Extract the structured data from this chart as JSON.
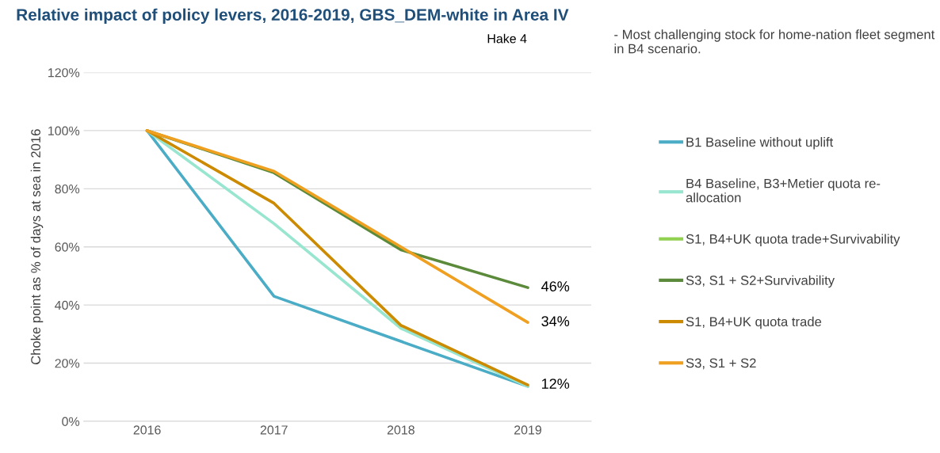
{
  "chart_data": {
    "type": "line",
    "title": "Relative impact of policy levers, 2016-2019, GBS_DEM-white in Area IV",
    "ylabel": "Choke point as % of days at sea in 2016",
    "annotations": [
      "Hake 4",
      "- Most challenging stock for home-nation fleet segment in B4 scenario."
    ],
    "categories": [
      "2016",
      "2017",
      "2018",
      "2019"
    ],
    "ylim": [
      0,
      120
    ],
    "yticks": [
      {
        "value": 0,
        "label": "0%"
      },
      {
        "value": 20,
        "label": "20%"
      },
      {
        "value": 40,
        "label": "40%"
      },
      {
        "value": 60,
        "label": "60%"
      },
      {
        "value": 80,
        "label": "80%"
      },
      {
        "value": 100,
        "label": "100%"
      },
      {
        "value": 120,
        "label": "120%"
      }
    ],
    "grid": "y",
    "legend": "right",
    "marker": "none",
    "line_style": "solid",
    "series": [
      {
        "name": "B1 Baseline without uplift",
        "color": "#4bacc6",
        "values": [
          100,
          43,
          27.5,
          12
        ]
      },
      {
        "name": "B4 Baseline, B3+Metier quota re-\nallocation",
        "color": "#99e6d0",
        "values": [
          100,
          68,
          32,
          12
        ]
      },
      {
        "name": "S1, B4+UK quota trade+Survivability",
        "color": "#92d050",
        "values": [
          null,
          null,
          null,
          null
        ]
      },
      {
        "name": "S3, S1 + S2+Survivability",
        "color": "#5a8a3a",
        "values": [
          100,
          85.5,
          59,
          46
        ],
        "value_labels": [
          null,
          null,
          null,
          "46%"
        ]
      },
      {
        "name": "S1, B4+UK quota trade",
        "color": "#cc8a00",
        "values": [
          100,
          75,
          33,
          12.5
        ],
        "value_labels": [
          null,
          null,
          null,
          "12%"
        ]
      },
      {
        "name": "S3, S1 + S2",
        "color": "#f0a020",
        "values": [
          100,
          86,
          60,
          34
        ],
        "value_labels": [
          null,
          null,
          null,
          "34%"
        ]
      }
    ]
  }
}
